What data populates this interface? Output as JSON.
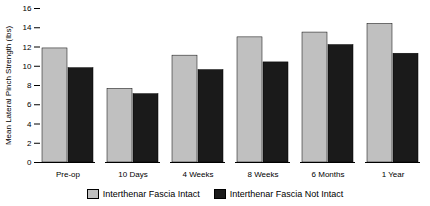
{
  "chart_data": {
    "type": "bar",
    "categories": [
      "Pre-op",
      "10 Days",
      "4 Weeks",
      "8 Weeks",
      "6 Months",
      "1 Year"
    ],
    "series": [
      {
        "name": "Interthenar Fascia Intact",
        "color": "#c0c0c0",
        "values": [
          11.85,
          7.65,
          11.1,
          13.0,
          13.5,
          14.4
        ]
      },
      {
        "name": "Interthenar Fascia Not Intact",
        "color": "#1a1a1a",
        "values": [
          9.8,
          7.1,
          9.6,
          10.4,
          12.2,
          11.3
        ]
      }
    ],
    "ylabel": "Mean Lateral Pinch Strength (lbs)",
    "ylim": [
      0,
      16
    ],
    "yticks": [
      0,
      2,
      4,
      6,
      8,
      10,
      12,
      14,
      16
    ],
    "legend": "bottom",
    "grid": false
  }
}
